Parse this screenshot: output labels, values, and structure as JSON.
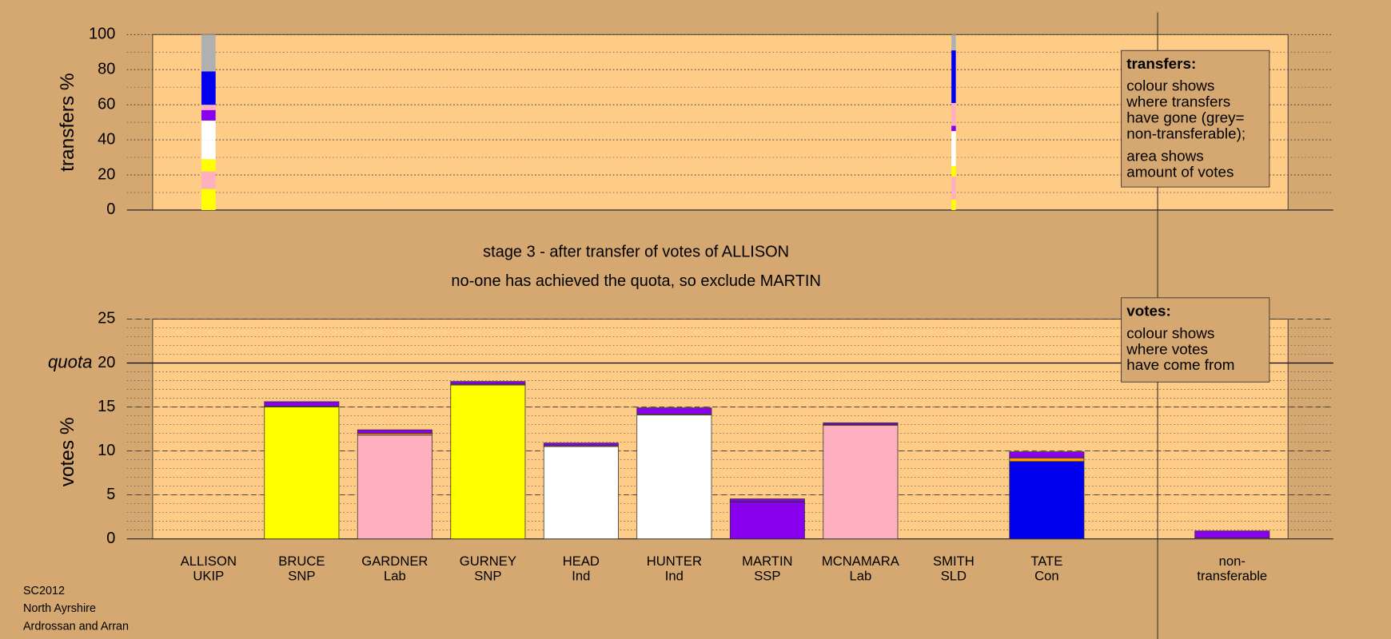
{
  "footer": [
    "SC2012",
    "North Ayrshire",
    "Ardrossan and Arran"
  ],
  "chart_data": [
    {
      "type": "bar",
      "stacked": true,
      "ylabel": "transfers %",
      "ylim": [
        0,
        100
      ],
      "yticks": [
        0,
        20,
        40,
        60,
        80,
        100
      ],
      "grid": true,
      "amounts": [
        4.2,
        null,
        null,
        null,
        null,
        null,
        null,
        null,
        1.3,
        null,
        null
      ],
      "series": [
        {
          "color": "#ffff00",
          "values": [
            12,
            null,
            null,
            null,
            null,
            null,
            null,
            null,
            6,
            null,
            null
          ]
        },
        {
          "color": "#ffb0c0",
          "values": [
            10,
            null,
            null,
            null,
            null,
            null,
            null,
            null,
            13,
            null,
            null
          ]
        },
        {
          "color": "#ffff00",
          "values": [
            7,
            null,
            null,
            null,
            null,
            null,
            null,
            null,
            6,
            null,
            null
          ]
        },
        {
          "color": "#ffffff",
          "values": [
            11,
            null,
            null,
            null,
            null,
            null,
            null,
            null,
            15,
            null,
            null
          ]
        },
        {
          "color": "#ffffff",
          "values": [
            11,
            null,
            null,
            null,
            null,
            null,
            null,
            null,
            5,
            null,
            null
          ]
        },
        {
          "color": "#8800ee",
          "values": [
            6,
            null,
            null,
            null,
            null,
            null,
            null,
            null,
            3,
            null,
            null
          ]
        },
        {
          "color": "#ffb0c0",
          "values": [
            3,
            null,
            null,
            null,
            null,
            null,
            null,
            null,
            13,
            null,
            null
          ]
        },
        {
          "color": "#0000ee",
          "values": [
            19,
            null,
            null,
            null,
            null,
            null,
            null,
            null,
            30,
            null,
            null
          ]
        },
        {
          "color": "#b0b0b0",
          "values": [
            21,
            null,
            null,
            null,
            null,
            null,
            null,
            null,
            9,
            null,
            null
          ]
        }
      ],
      "note": {
        "title": "transfers:",
        "paragraphs": [
          [
            "colour shows",
            "where transfers",
            "have gone (grey=",
            "non-transferable);"
          ],
          [
            "area shows",
            "amount of votes"
          ]
        ]
      }
    },
    {
      "type": "bar",
      "stacked": true,
      "title": "stage 3 - after transfer of votes of ALLISON",
      "subtitle": "no-one has achieved the quota, so exclude MARTIN",
      "ylabel": "votes %",
      "ylim": [
        0,
        25
      ],
      "yticks": [
        0,
        5,
        10,
        15,
        20,
        25
      ],
      "grid": true,
      "quota": {
        "value": 20,
        "label": "quota"
      },
      "categories": [
        "ALLISON",
        "BRUCE",
        "GARDNER",
        "GURNEY",
        "HEAD",
        "HUNTER",
        "MARTIN",
        "MCNAMARA",
        "SMITH",
        "TATE",
        "non-"
      ],
      "parties": [
        "UKIP",
        "SNP",
        "Lab",
        "SNP",
        "Ind",
        "Ind",
        "SSP",
        "Lab",
        "SLD",
        "Con",
        "transferable"
      ],
      "series": [
        {
          "colors": [
            "#ffff00",
            "#ffff00",
            "#ffb0c0",
            "#ffff00",
            "#ffffff",
            "#ffffff",
            "#8800ee",
            "#ffb0c0",
            "#ff9900",
            "#0000ee",
            "#b0b0b0"
          ],
          "values": [
            0,
            15.0,
            11.8,
            17.5,
            10.5,
            14.1,
            4.2,
            12.9,
            0,
            8.8,
            0
          ]
        },
        {
          "color": "#ff9900",
          "values": [
            0,
            0.1,
            0.2,
            0.1,
            0.1,
            0.1,
            0.05,
            0.1,
            0,
            0.4,
            0.1
          ]
        },
        {
          "color": "#8800ee",
          "values": [
            0,
            0.5,
            0.4,
            0.3,
            0.3,
            0.7,
            0.3,
            0.2,
            0,
            0.7,
            0.8
          ]
        }
      ],
      "note": {
        "title": "votes:",
        "paragraphs": [
          [
            "colour shows",
            "where votes",
            "have come from"
          ]
        ]
      }
    }
  ]
}
